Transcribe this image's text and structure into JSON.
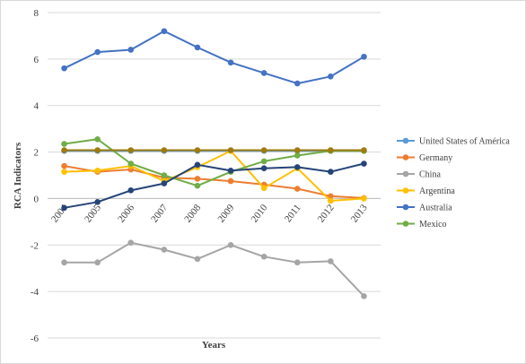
{
  "chart_data": {
    "type": "line",
    "xlabel": "Years",
    "ylabel": "RCA Indicators",
    "ylim": [
      -6,
      8
    ],
    "ytick_step": 2,
    "grid": "horizontal",
    "legend_position": "right",
    "categories": [
      "2004",
      "2005",
      "2006",
      "2007",
      "2008",
      "2009",
      "2010",
      "2011",
      "2012",
      "2013"
    ],
    "series": [
      {
        "name": "United States of América",
        "color": "#5b9bd5",
        "values": [
          2.05,
          2.05,
          2.05,
          2.05,
          2.05,
          2.05,
          2.05,
          2.05,
          2.05,
          2.05
        ],
        "legend": true
      },
      {
        "name": "Germany",
        "color": "#ed7d31",
        "values": [
          1.4,
          1.15,
          1.25,
          0.9,
          0.85,
          0.75,
          0.6,
          0.42,
          0.1,
          0.02
        ],
        "legend": true
      },
      {
        "name": "China",
        "color": "#a5a5a5",
        "values": [
          -2.75,
          -2.75,
          -1.9,
          -2.2,
          -2.6,
          -2.0,
          -2.5,
          -2.75,
          -2.7,
          -4.2
        ],
        "legend": true
      },
      {
        "name": "Argentina",
        "color": "#ffc000",
        "values": [
          1.15,
          1.2,
          1.4,
          0.75,
          1.35,
          2.05,
          0.45,
          1.3,
          -0.1,
          0.0
        ],
        "legend": true
      },
      {
        "name": "Australia",
        "color": "#4472c4",
        "values": [
          5.6,
          6.3,
          6.4,
          7.2,
          6.5,
          5.85,
          5.4,
          4.95,
          5.25,
          6.1
        ],
        "legend": true
      },
      {
        "name": "Mexico",
        "color": "#70ad47",
        "values": [
          2.35,
          2.55,
          1.5,
          1.0,
          0.55,
          1.15,
          1.6,
          1.85,
          2.05,
          2.05
        ],
        "legend": true
      },
      {
        "name": "",
        "color": "#264478",
        "values": [
          -0.4,
          -0.15,
          0.35,
          0.65,
          1.45,
          1.2,
          1.3,
          1.35,
          1.15,
          1.5
        ],
        "legend": false
      },
      {
        "name": "",
        "color": "#9e7b0f",
        "values": [
          2.08,
          2.08,
          2.08,
          2.08,
          2.08,
          2.08,
          2.08,
          2.08,
          2.08,
          2.08
        ],
        "legend": false
      }
    ]
  }
}
